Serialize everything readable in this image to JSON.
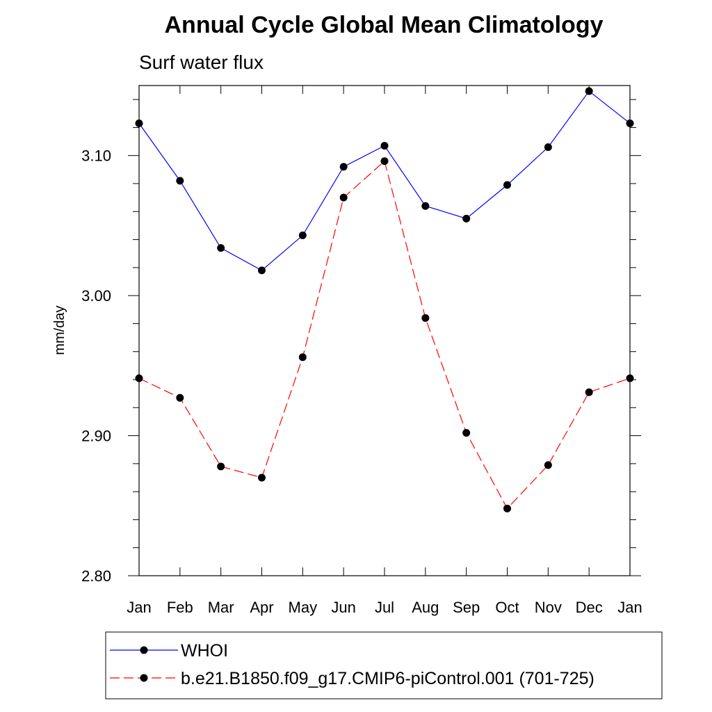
{
  "chart_data": {
    "type": "line",
    "title": "Annual Cycle Global Mean Climatology",
    "subtitle": "Surf water flux",
    "ylabel": "mm/day",
    "xlabel": "",
    "categories": [
      "Jan",
      "Feb",
      "Mar",
      "Apr",
      "May",
      "Jun",
      "Jul",
      "Aug",
      "Sep",
      "Oct",
      "Nov",
      "Dec",
      "Jan"
    ],
    "ylim": [
      2.8,
      3.15
    ],
    "yticks": [
      "2.80",
      "2.90",
      "3.00",
      "3.10"
    ],
    "grid": false,
    "legend_position": "bottom",
    "series": [
      {
        "name": "WHOI",
        "color": "#0000ff",
        "dash": "solid",
        "marker": "filled-circle",
        "values": [
          3.123,
          3.082,
          3.034,
          3.018,
          3.043,
          3.092,
          3.107,
          3.064,
          3.055,
          3.079,
          3.106,
          3.146,
          3.123
        ]
      },
      {
        "name": "b.e21.B1850.f09_g17.CMIP6-piControl.001 (701-725)",
        "color": "#ff0000",
        "dash": "dashed",
        "marker": "filled-circle",
        "values": [
          2.941,
          2.927,
          2.878,
          2.87,
          2.956,
          3.07,
          3.096,
          2.984,
          2.902,
          2.848,
          2.879,
          2.931,
          2.941
        ]
      }
    ]
  }
}
